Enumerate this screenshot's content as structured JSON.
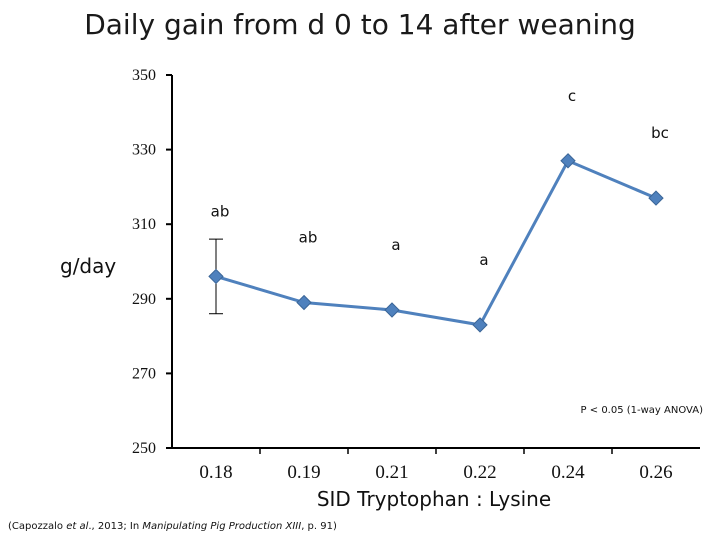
{
  "chart_data": {
    "type": "line",
    "title": "Daily gain from d 0 to 14 after weaning",
    "xlabel": "SID Tryptophan : Lysine",
    "ylabel": "g/day",
    "ylim": [
      250,
      350
    ],
    "yticks": [
      250,
      270,
      290,
      310,
      330,
      350
    ],
    "categories": [
      "0.18",
      "0.19",
      "0.21",
      "0.22",
      "0.24",
      "0.26"
    ],
    "series": [
      {
        "name": "Daily gain",
        "color": "#4f81bd",
        "values": [
          296,
          289,
          287,
          283,
          327,
          317
        ],
        "labels": [
          "ab",
          "ab",
          "a",
          "a",
          "c",
          "bc"
        ],
        "error_bars": [
          {
            "index": 0,
            "low": 286,
            "high": 306
          }
        ]
      }
    ],
    "annotation": "P < 0.05 (1-way ANOVA)"
  },
  "citation": {
    "prefix": "(Capozzalo ",
    "etal": "et al",
    "middle": "., 2013; In ",
    "book": "Manipulating Pig Production XIII",
    "suffix": ", p. 91)"
  }
}
